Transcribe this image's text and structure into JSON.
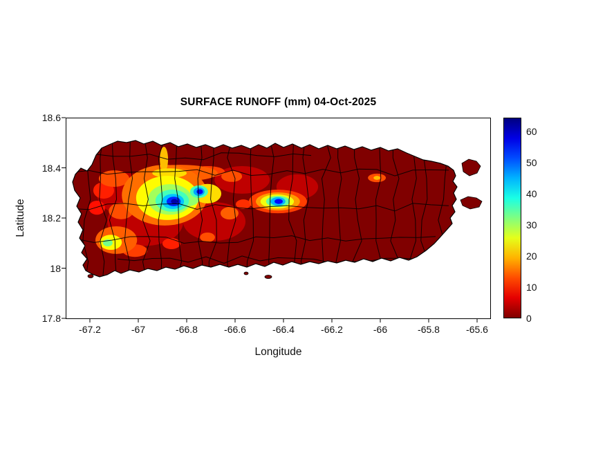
{
  "figure": {
    "title": "SURFACE RUNOFF (mm) 04-Oct-2025",
    "xlabel": "Longitude",
    "ylabel": "Latitude",
    "background_color": "#ffffff",
    "axis_color": "#000000",
    "boundary_color": "#000000"
  },
  "chart_data": {
    "type": "heatmap",
    "title": "SURFACE RUNOFF (mm) 04-Oct-2025",
    "xlabel": "Longitude",
    "ylabel": "Latitude",
    "region": "Puerto Rico with municipal boundaries overlaid",
    "units": "mm",
    "grid": false,
    "xlim": [
      -67.3,
      -65.54
    ],
    "ylim": [
      17.8,
      18.6
    ],
    "x_ticks": [
      -67.2,
      -67,
      -66.8,
      -66.6,
      -66.4,
      -66.2,
      -66,
      -65.8,
      -65.6
    ],
    "x_tick_labels": [
      "-67.2",
      "-67",
      "-66.8",
      "-66.6",
      "-66.4",
      "-66.2",
      "-66",
      "-65.8",
      "-65.6"
    ],
    "y_ticks": [
      17.8,
      18,
      18.2,
      18.4,
      18.6
    ],
    "y_tick_labels": [
      "17.8",
      "18",
      "18.2",
      "18.4",
      "18.6"
    ],
    "colorbar": {
      "position": "right",
      "ticks": [
        0,
        10,
        20,
        30,
        40,
        50,
        60
      ],
      "tick_labels": [
        "0",
        "10",
        "20",
        "30",
        "40",
        "50",
        "60"
      ],
      "range": [
        0,
        64.5
      ],
      "colormap": "jet reversed (0 mm = dark red, ~64 mm = dark blue)"
    },
    "base_value": 0,
    "runoff_blobs": [
      {
        "lon": -66.971,
        "lat": 18.186,
        "rx": 0.157,
        "ry": 0.097,
        "value": 4
      },
      {
        "lon": -66.686,
        "lat": 18.186,
        "rx": 0.129,
        "ry": 0.077,
        "value": 4
      },
      {
        "lon": -67.057,
        "lat": 18.297,
        "rx": 0.114,
        "ry": 0.083,
        "value": 4
      },
      {
        "lon": -66.571,
        "lat": 18.352,
        "rx": 0.114,
        "ry": 0.055,
        "value": 4
      },
      {
        "lon": -66.343,
        "lat": 18.324,
        "rx": 0.086,
        "ry": 0.05,
        "value": 4
      },
      {
        "lon": -66.891,
        "lat": 18.291,
        "rx": 0.177,
        "ry": 0.121,
        "value": 15
      },
      {
        "lon": -66.88,
        "lat": 18.28,
        "rx": 0.129,
        "ry": 0.088,
        "value": 24
      },
      {
        "lon": -66.869,
        "lat": 18.274,
        "rx": 0.091,
        "ry": 0.061,
        "value": 30
      },
      {
        "lon": -66.86,
        "lat": 18.269,
        "rx": 0.069,
        "ry": 0.044,
        "value": 36
      },
      {
        "lon": -66.857,
        "lat": 18.266,
        "rx": 0.046,
        "ry": 0.03,
        "value": 44
      },
      {
        "lon": -66.854,
        "lat": 18.266,
        "rx": 0.029,
        "ry": 0.019,
        "value": 54
      },
      {
        "lon": -66.851,
        "lat": 18.266,
        "rx": 0.014,
        "ry": 0.01,
        "value": 62
      },
      {
        "lon": -66.8,
        "lat": 18.274,
        "rx": 0.051,
        "ry": 0.028,
        "value": 31
      },
      {
        "lon": -66.714,
        "lat": 18.297,
        "rx": 0.057,
        "ry": 0.039,
        "value": 22
      },
      {
        "lon": -66.749,
        "lat": 18.305,
        "rx": 0.037,
        "ry": 0.025,
        "value": 36
      },
      {
        "lon": -66.749,
        "lat": 18.305,
        "rx": 0.023,
        "ry": 0.017,
        "value": 46
      },
      {
        "lon": -66.746,
        "lat": 18.305,
        "rx": 0.013,
        "ry": 0.01,
        "value": 57
      },
      {
        "lon": -66.423,
        "lat": 18.266,
        "rx": 0.12,
        "ry": 0.047,
        "value": 12
      },
      {
        "lon": -66.423,
        "lat": 18.266,
        "rx": 0.091,
        "ry": 0.036,
        "value": 18
      },
      {
        "lon": -66.426,
        "lat": 18.266,
        "rx": 0.069,
        "ry": 0.028,
        "value": 25
      },
      {
        "lon": -66.423,
        "lat": 18.266,
        "rx": 0.049,
        "ry": 0.022,
        "value": 34
      },
      {
        "lon": -66.423,
        "lat": 18.266,
        "rx": 0.031,
        "ry": 0.017,
        "value": 45
      },
      {
        "lon": -66.42,
        "lat": 18.266,
        "rx": 0.017,
        "ry": 0.01,
        "value": 56
      },
      {
        "lon": -66.829,
        "lat": 18.379,
        "rx": 0.157,
        "ry": 0.033,
        "value": 14
      },
      {
        "lon": -66.871,
        "lat": 18.379,
        "rx": 0.071,
        "ry": 0.019,
        "value": 22
      },
      {
        "lon": -66.894,
        "lat": 18.434,
        "rx": 0.017,
        "ry": 0.05,
        "value": 20
      },
      {
        "lon": -66.714,
        "lat": 18.385,
        "rx": 0.071,
        "ry": 0.022,
        "value": 12
      },
      {
        "lon": -66.614,
        "lat": 18.366,
        "rx": 0.043,
        "ry": 0.022,
        "value": 13
      },
      {
        "lon": -67.1,
        "lat": 18.357,
        "rx": 0.063,
        "ry": 0.033,
        "value": 13
      },
      {
        "lon": -67.143,
        "lat": 18.31,
        "rx": 0.043,
        "ry": 0.033,
        "value": 10
      },
      {
        "lon": -67.071,
        "lat": 18.228,
        "rx": 0.051,
        "ry": 0.033,
        "value": 13
      },
      {
        "lon": -67.171,
        "lat": 18.241,
        "rx": 0.034,
        "ry": 0.028,
        "value": 9
      },
      {
        "lon": -67.091,
        "lat": 18.112,
        "rx": 0.086,
        "ry": 0.055,
        "value": 14
      },
      {
        "lon": -67.114,
        "lat": 18.103,
        "rx": 0.046,
        "ry": 0.03,
        "value": 24
      },
      {
        "lon": -67.126,
        "lat": 18.101,
        "rx": 0.02,
        "ry": 0.014,
        "value": 33
      },
      {
        "lon": -67.014,
        "lat": 18.07,
        "rx": 0.051,
        "ry": 0.025,
        "value": 12
      },
      {
        "lon": -66.863,
        "lat": 18.098,
        "rx": 0.037,
        "ry": 0.022,
        "value": 10
      },
      {
        "lon": -66.714,
        "lat": 18.123,
        "rx": 0.031,
        "ry": 0.019,
        "value": 13
      },
      {
        "lon": -66.623,
        "lat": 18.219,
        "rx": 0.037,
        "ry": 0.025,
        "value": 14
      },
      {
        "lon": -66.566,
        "lat": 18.255,
        "rx": 0.031,
        "ry": 0.019,
        "value": 11
      },
      {
        "lon": -66.014,
        "lat": 18.36,
        "rx": 0.037,
        "ry": 0.017,
        "value": 13
      },
      {
        "lon": -66.014,
        "lat": 18.36,
        "rx": 0.014,
        "ry": 0.008,
        "value": 20
      }
    ]
  }
}
